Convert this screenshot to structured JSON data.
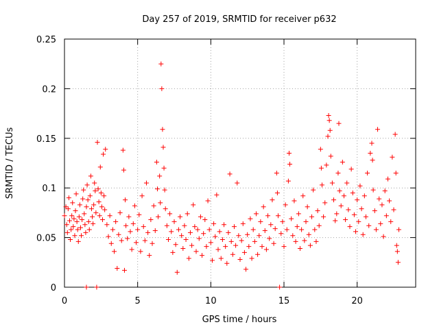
{
  "chart_data": {
    "type": "scatter",
    "title": "Day 257 of 2019, SRMTID for receiver p632",
    "xlabel": "GPS time / hours",
    "ylabel": "SRMTID / TECUs",
    "xlim": [
      0,
      24
    ],
    "ylim": [
      0,
      0.25
    ],
    "x_ticks": [
      0,
      5,
      10,
      15,
      20
    ],
    "x_tick_labels": [
      "0",
      "5",
      "10",
      "15",
      "20"
    ],
    "y_ticks": [
      0,
      0.05,
      0.1,
      0.15,
      0.2,
      0.25
    ],
    "y_tick_labels": [
      "0",
      "0.05",
      "0.1",
      "0.15",
      "0.2",
      "0.25"
    ],
    "grid": true,
    "marker": "+",
    "series": [
      {
        "name": "SRMTID",
        "color": "#ff0000",
        "points": [
          [
            0.0,
            0.072
          ],
          [
            0.1,
            0.081
          ],
          [
            0.15,
            0.063
          ],
          [
            0.2,
            0.055
          ],
          [
            0.25,
            0.079
          ],
          [
            0.3,
            0.09
          ],
          [
            0.35,
            0.067
          ],
          [
            0.4,
            0.048
          ],
          [
            0.45,
            0.058
          ],
          [
            0.5,
            0.072
          ],
          [
            0.55,
            0.085
          ],
          [
            0.6,
            0.061
          ],
          [
            0.65,
            0.069
          ],
          [
            0.7,
            0.052
          ],
          [
            0.75,
            0.077
          ],
          [
            0.8,
            0.094
          ],
          [
            0.85,
            0.066
          ],
          [
            0.9,
            0.058
          ],
          [
            0.95,
            0.046
          ],
          [
            1.0,
            0.071
          ],
          [
            1.05,
            0.083
          ],
          [
            1.1,
            0.06
          ],
          [
            1.15,
            0.052
          ],
          [
            1.2,
            0.068
          ],
          [
            1.25,
            0.089
          ],
          [
            1.3,
            0.098
          ],
          [
            1.35,
            0.074
          ],
          [
            1.4,
            0.063
          ],
          [
            1.45,
            0.055
          ],
          [
            1.5,
            0.081
          ],
          [
            1.5,
            0.0
          ],
          [
            1.55,
            0.103
          ],
          [
            1.6,
            0.088
          ],
          [
            1.65,
            0.066
          ],
          [
            1.7,
            0.058
          ],
          [
            1.75,
            0.092
          ],
          [
            1.8,
            0.112
          ],
          [
            1.85,
            0.079
          ],
          [
            1.9,
            0.071
          ],
          [
            1.95,
            0.064
          ],
          [
            2.0,
            0.083
          ],
          [
            2.05,
            0.105
          ],
          [
            2.1,
            0.097
          ],
          [
            2.15,
            0.075
          ],
          [
            2.2,
            0.0
          ],
          [
            2.25,
            0.146
          ],
          [
            2.3,
            0.099
          ],
          [
            2.35,
            0.086
          ],
          [
            2.4,
            0.072
          ],
          [
            2.45,
            0.121
          ],
          [
            2.5,
            0.095
          ],
          [
            2.55,
            0.081
          ],
          [
            2.6,
            0.068
          ],
          [
            2.65,
            0.134
          ],
          [
            2.7,
            0.092
          ],
          [
            2.75,
            0.078
          ],
          [
            2.8,
            0.139
          ],
          [
            2.9,
            0.063
          ],
          [
            3.0,
            0.051
          ],
          [
            3.1,
            0.072
          ],
          [
            3.2,
            0.044
          ],
          [
            3.3,
            0.058
          ],
          [
            3.4,
            0.036
          ],
          [
            3.5,
            0.066
          ],
          [
            3.6,
            0.019
          ],
          [
            3.7,
            0.053
          ],
          [
            3.8,
            0.075
          ],
          [
            3.9,
            0.047
          ],
          [
            4.0,
            0.138
          ],
          [
            4.05,
            0.118
          ],
          [
            4.1,
            0.017
          ],
          [
            4.15,
            0.088
          ],
          [
            4.2,
            0.062
          ],
          [
            4.3,
            0.049
          ],
          [
            4.4,
            0.071
          ],
          [
            4.5,
            0.056
          ],
          [
            4.6,
            0.038
          ],
          [
            4.7,
            0.064
          ],
          [
            4.8,
            0.082
          ],
          [
            4.9,
            0.045
          ],
          [
            5.0,
            0.058
          ],
          [
            5.1,
            0.073
          ],
          [
            5.2,
            0.036
          ],
          [
            5.3,
            0.092
          ],
          [
            5.4,
            0.061
          ],
          [
            5.5,
            0.047
          ],
          [
            5.6,
            0.105
          ],
          [
            5.7,
            0.055
          ],
          [
            5.8,
            0.032
          ],
          [
            5.9,
            0.068
          ],
          [
            6.0,
            0.044
          ],
          [
            6.1,
            0.082
          ],
          [
            6.2,
            0.057
          ],
          [
            6.3,
            0.126
          ],
          [
            6.35,
            0.099
          ],
          [
            6.4,
            0.071
          ],
          [
            6.5,
            0.112
          ],
          [
            6.55,
            0.085
          ],
          [
            6.6,
            0.225
          ],
          [
            6.65,
            0.2
          ],
          [
            6.7,
            0.159
          ],
          [
            6.75,
            0.141
          ],
          [
            6.8,
            0.12
          ],
          [
            6.85,
            0.098
          ],
          [
            6.9,
            0.079
          ],
          [
            7.0,
            0.062
          ],
          [
            7.1,
            0.048
          ],
          [
            7.2,
            0.074
          ],
          [
            7.3,
            0.056
          ],
          [
            7.4,
            0.035
          ],
          [
            7.5,
            0.066
          ],
          [
            7.6,
            0.043
          ],
          [
            7.7,
            0.015
          ],
          [
            7.8,
            0.058
          ],
          [
            7.9,
            0.071
          ],
          [
            8.0,
            0.052
          ],
          [
            8.1,
            0.039
          ],
          [
            8.2,
            0.062
          ],
          [
            8.3,
            0.048
          ],
          [
            8.4,
            0.074
          ],
          [
            8.5,
            0.029
          ],
          [
            8.6,
            0.055
          ],
          [
            8.7,
            0.042
          ],
          [
            8.8,
            0.083
          ],
          [
            8.9,
            0.061
          ],
          [
            9.0,
            0.036
          ],
          [
            9.1,
            0.058
          ],
          [
            9.2,
            0.049
          ],
          [
            9.3,
            0.071
          ],
          [
            9.4,
            0.032
          ],
          [
            9.5,
            0.054
          ],
          [
            9.6,
            0.068
          ],
          [
            9.7,
            0.041
          ],
          [
            9.8,
            0.087
          ],
          [
            9.9,
            0.058
          ],
          [
            10.0,
            0.045
          ],
          [
            10.1,
            0.027
          ],
          [
            10.2,
            0.064
          ],
          [
            10.3,
            0.051
          ],
          [
            10.4,
            0.093
          ],
          [
            10.5,
            0.038
          ],
          [
            10.6,
            0.056
          ],
          [
            10.7,
            0.029
          ],
          [
            10.8,
            0.048
          ],
          [
            10.9,
            0.063
          ],
          [
            11.0,
            0.041
          ],
          [
            11.1,
            0.024
          ],
          [
            11.2,
            0.055
          ],
          [
            11.3,
            0.114
          ],
          [
            11.4,
            0.046
          ],
          [
            11.5,
            0.033
          ],
          [
            11.6,
            0.061
          ],
          [
            11.7,
            0.042
          ],
          [
            11.8,
            0.105
          ],
          [
            11.9,
            0.052
          ],
          [
            12.0,
            0.028
          ],
          [
            12.1,
            0.047
          ],
          [
            12.2,
            0.064
          ],
          [
            12.3,
            0.035
          ],
          [
            12.4,
            0.018
          ],
          [
            12.5,
            0.053
          ],
          [
            12.6,
            0.041
          ],
          [
            12.7,
            0.069
          ],
          [
            12.8,
            0.029
          ],
          [
            12.9,
            0.058
          ],
          [
            13.0,
            0.046
          ],
          [
            13.1,
            0.074
          ],
          [
            13.2,
            0.033
          ],
          [
            13.3,
            0.052
          ],
          [
            13.4,
            0.066
          ],
          [
            13.5,
            0.041
          ],
          [
            13.6,
            0.081
          ],
          [
            13.7,
            0.057
          ],
          [
            13.8,
            0.038
          ],
          [
            13.9,
            0.072
          ],
          [
            14.0,
            0.049
          ],
          [
            14.1,
            0.063
          ],
          [
            14.2,
            0.088
          ],
          [
            14.3,
            0.044
          ],
          [
            14.4,
            0.059
          ],
          [
            14.5,
            0.115
          ],
          [
            14.55,
            0.095
          ],
          [
            14.6,
            0.072
          ],
          [
            14.7,
            0.0
          ],
          [
            14.8,
            0.054
          ],
          [
            14.9,
            0.066
          ],
          [
            15.0,
            0.041
          ],
          [
            15.1,
            0.083
          ],
          [
            15.2,
            0.058
          ],
          [
            15.3,
            0.107
          ],
          [
            15.35,
            0.135
          ],
          [
            15.4,
            0.124
          ],
          [
            15.5,
            0.069
          ],
          [
            15.6,
            0.052
          ],
          [
            15.7,
            0.087
          ],
          [
            15.8,
            0.046
          ],
          [
            15.9,
            0.061
          ],
          [
            16.0,
            0.074
          ],
          [
            16.1,
            0.039
          ],
          [
            16.2,
            0.058
          ],
          [
            16.3,
            0.092
          ],
          [
            16.4,
            0.047
          ],
          [
            16.5,
            0.066
          ],
          [
            16.6,
            0.081
          ],
          [
            16.7,
            0.053
          ],
          [
            16.8,
            0.042
          ],
          [
            16.9,
            0.071
          ],
          [
            17.0,
            0.098
          ],
          [
            17.1,
            0.058
          ],
          [
            17.2,
            0.046
          ],
          [
            17.3,
            0.077
          ],
          [
            17.4,
            0.062
          ],
          [
            17.5,
            0.139
          ],
          [
            17.55,
            0.12
          ],
          [
            17.6,
            0.103
          ],
          [
            17.7,
            0.071
          ],
          [
            17.8,
            0.085
          ],
          [
            17.9,
            0.123
          ],
          [
            18.0,
            0.152
          ],
          [
            18.05,
            0.173
          ],
          [
            18.1,
            0.168
          ],
          [
            18.15,
            0.158
          ],
          [
            18.2,
            0.132
          ],
          [
            18.3,
            0.105
          ],
          [
            18.4,
            0.088
          ],
          [
            18.5,
            0.067
          ],
          [
            18.6,
            0.074
          ],
          [
            18.7,
            0.115
          ],
          [
            18.75,
            0.165
          ],
          [
            18.8,
            0.097
          ],
          [
            18.9,
            0.082
          ],
          [
            19.0,
            0.126
          ],
          [
            19.1,
            0.092
          ],
          [
            19.2,
            0.068
          ],
          [
            19.3,
            0.105
          ],
          [
            19.4,
            0.078
          ],
          [
            19.5,
            0.061
          ],
          [
            19.6,
            0.119
          ],
          [
            19.7,
            0.095
          ],
          [
            19.8,
            0.073
          ],
          [
            19.9,
            0.056
          ],
          [
            20.0,
            0.088
          ],
          [
            20.1,
            0.066
          ],
          [
            20.2,
            0.102
          ],
          [
            20.3,
            0.079
          ],
          [
            20.4,
            0.053
          ],
          [
            20.5,
            0.092
          ],
          [
            20.6,
            0.071
          ],
          [
            20.7,
            0.115
          ],
          [
            20.8,
            0.062
          ],
          [
            20.9,
            0.135
          ],
          [
            21.0,
            0.145
          ],
          [
            21.05,
            0.128
          ],
          [
            21.1,
            0.098
          ],
          [
            21.2,
            0.077
          ],
          [
            21.3,
            0.058
          ],
          [
            21.4,
            0.159
          ],
          [
            21.5,
            0.089
          ],
          [
            21.6,
            0.064
          ],
          [
            21.7,
            0.083
          ],
          [
            21.8,
            0.051
          ],
          [
            21.9,
            0.097
          ],
          [
            22.0,
            0.072
          ],
          [
            22.1,
            0.109
          ],
          [
            22.2,
            0.087
          ],
          [
            22.3,
            0.066
          ],
          [
            22.4,
            0.131
          ],
          [
            22.5,
            0.078
          ],
          [
            22.6,
            0.154
          ],
          [
            22.65,
            0.115
          ],
          [
            22.7,
            0.042
          ],
          [
            22.75,
            0.036
          ],
          [
            22.8,
            0.025
          ],
          [
            22.85,
            0.058
          ]
        ]
      }
    ]
  }
}
